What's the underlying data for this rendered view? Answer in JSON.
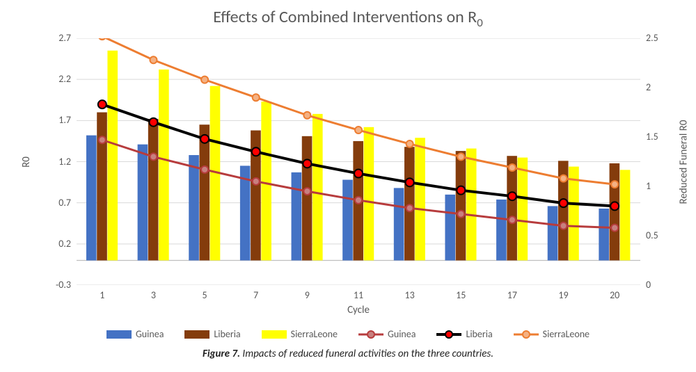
{
  "chart": {
    "type": "grouped-bar-with-lines-dual-axis",
    "title_main": "Effects of Combined Interventions on R",
    "title_sub": "0",
    "x_axis": {
      "label": "Cycle",
      "categories": [
        "1",
        "3",
        "5",
        "7",
        "9",
        "11",
        "13",
        "15",
        "17",
        "19",
        "20"
      ],
      "fontsize": 14
    },
    "left_axis": {
      "label": "R0",
      "min": -0.3,
      "max": 2.7,
      "ticks": [
        -0.3,
        0.2,
        0.7,
        1.2,
        1.7,
        2.2,
        2.7
      ],
      "fontsize": 14,
      "grid_color": "#d9d9d9",
      "baseline_color": "#bfbfbf"
    },
    "right_axis": {
      "label": "Reduced Funeral R0",
      "min": 0,
      "max": 2.5,
      "ticks": [
        0,
        0.5,
        1,
        1.5,
        2,
        2.5
      ],
      "fontsize": 14
    },
    "bar_series": [
      {
        "name": "Guinea",
        "color": "#4472c4",
        "values": [
          1.52,
          1.41,
          1.28,
          1.15,
          1.07,
          0.98,
          0.88,
          0.8,
          0.74,
          0.66,
          0.63
        ]
      },
      {
        "name": "Liberia",
        "color": "#843c0c",
        "values": [
          1.8,
          1.72,
          1.65,
          1.58,
          1.51,
          1.45,
          1.38,
          1.33,
          1.27,
          1.21,
          1.18
        ]
      },
      {
        "name": "SierraLeone",
        "color": "#ffff00",
        "values": [
          2.55,
          2.32,
          2.12,
          1.93,
          1.78,
          1.62,
          1.49,
          1.36,
          1.25,
          1.14,
          1.1
        ]
      }
    ],
    "line_series": [
      {
        "name": "Guinea",
        "axis": "right",
        "line_color": "#b73c3d",
        "line_width": 3,
        "marker_fill": "#c8807f",
        "marker_stroke": "#b73c3d",
        "marker_r": 5,
        "values": [
          1.47,
          1.3,
          1.17,
          1.05,
          0.95,
          0.86,
          0.78,
          0.72,
          0.66,
          0.6,
          0.58
        ]
      },
      {
        "name": "Liberia",
        "axis": "right",
        "line_color": "#000000",
        "line_width": 4,
        "marker_fill": "#ff0000",
        "marker_stroke": "#000000",
        "marker_r": 6,
        "values": [
          1.83,
          1.65,
          1.48,
          1.35,
          1.23,
          1.13,
          1.04,
          0.96,
          0.9,
          0.83,
          0.8
        ]
      },
      {
        "name": "SierraLeone",
        "axis": "right",
        "line_color": "#ed7d31",
        "line_width": 3,
        "marker_fill": "#f4b183",
        "marker_stroke": "#ed7d31",
        "marker_r": 5,
        "values": [
          2.52,
          2.28,
          2.08,
          1.9,
          1.72,
          1.57,
          1.43,
          1.3,
          1.19,
          1.08,
          1.02
        ]
      }
    ],
    "bar_group_width": 0.62,
    "background_color": "#ffffff",
    "title_color": "#595959",
    "title_fontsize": 24,
    "label_color": "#595959"
  },
  "caption": {
    "fig_label": "Figure 7.",
    "text": " Impacts of reduced funeral activities on the three countries."
  },
  "legend": {
    "items": [
      {
        "kind": "bar",
        "label": "Guinea",
        "color": "#4472c4"
      },
      {
        "kind": "bar",
        "label": "Liberia",
        "color": "#843c0c"
      },
      {
        "kind": "bar",
        "label": "SierraLeone",
        "color": "#ffff00"
      },
      {
        "kind": "line",
        "label": "Guinea",
        "line_color": "#b73c3d",
        "marker_fill": "#c8807f",
        "marker_stroke": "#b73c3d"
      },
      {
        "kind": "line",
        "label": "Liberia",
        "line_color": "#000000",
        "marker_fill": "#ff0000",
        "marker_stroke": "#000000"
      },
      {
        "kind": "line",
        "label": "SierraLeone",
        "line_color": "#ed7d31",
        "marker_fill": "#f4b183",
        "marker_stroke": "#ed7d31"
      }
    ]
  }
}
